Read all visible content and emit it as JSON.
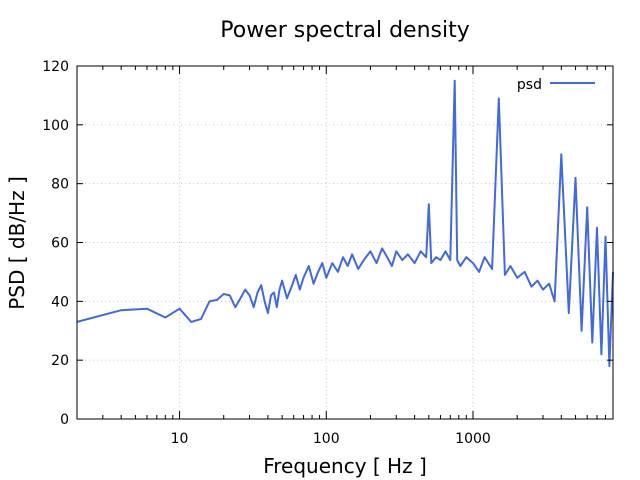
{
  "chart_data": {
    "type": "line",
    "title": "Power spectral density",
    "xlabel": "Frequency [ Hz ]",
    "ylabel": "PSD [ dB/Hz ]",
    "xscale": "log",
    "xlim": [
      2,
      9000
    ],
    "ylim": [
      0,
      120
    ],
    "xticks": [
      10,
      100,
      1000
    ],
    "xtick_labels": [
      "10",
      "100",
      "1000"
    ],
    "yticks": [
      0,
      20,
      40,
      60,
      80,
      100,
      120
    ],
    "ytick_labels": [
      "0",
      "20",
      "40",
      "60",
      "80",
      "100",
      "120"
    ],
    "grid": true,
    "legend": "top-right",
    "series": [
      {
        "name": "psd",
        "color": "#4169e1",
        "x": [
          2,
          4,
          6,
          8,
          10,
          12,
          14,
          16,
          18,
          20,
          22,
          24,
          26,
          28,
          30,
          32,
          34,
          36,
          38,
          40,
          42,
          44,
          46,
          48,
          50,
          54,
          58,
          62,
          66,
          70,
          76,
          82,
          88,
          94,
          100,
          110,
          120,
          130,
          140,
          150,
          165,
          180,
          200,
          220,
          240,
          260,
          280,
          300,
          330,
          360,
          400,
          440,
          480,
          500,
          520,
          560,
          600,
          650,
          700,
          750,
          780,
          820,
          900,
          1000,
          1100,
          1200,
          1350,
          1500,
          1650,
          1800,
          2000,
          2250,
          2500,
          2750,
          3000,
          3300,
          3600,
          4000,
          4500,
          5000,
          5500,
          6000,
          6500,
          7000,
          7500,
          8000,
          8500,
          9000
        ],
        "y": [
          33,
          37,
          37.5,
          34.5,
          37.5,
          33,
          34,
          40,
          40.5,
          42.5,
          42,
          38,
          41,
          44,
          42,
          38,
          43,
          45.5,
          40,
          36,
          42,
          43,
          38,
          44,
          47,
          41,
          45,
          49,
          44,
          48,
          52,
          46,
          50,
          53,
          48,
          53,
          50,
          55,
          52,
          56,
          51,
          54,
          57,
          53,
          58,
          55,
          52,
          57,
          54,
          56,
          53,
          57,
          55,
          73,
          53,
          55,
          54,
          57,
          54,
          115,
          54,
          52,
          55,
          53,
          50,
          55,
          51,
          109,
          49,
          52,
          48,
          50,
          45,
          47,
          44,
          46,
          40,
          90,
          36,
          82,
          30,
          72,
          26,
          65,
          22,
          62,
          18,
          50
        ]
      }
    ]
  }
}
